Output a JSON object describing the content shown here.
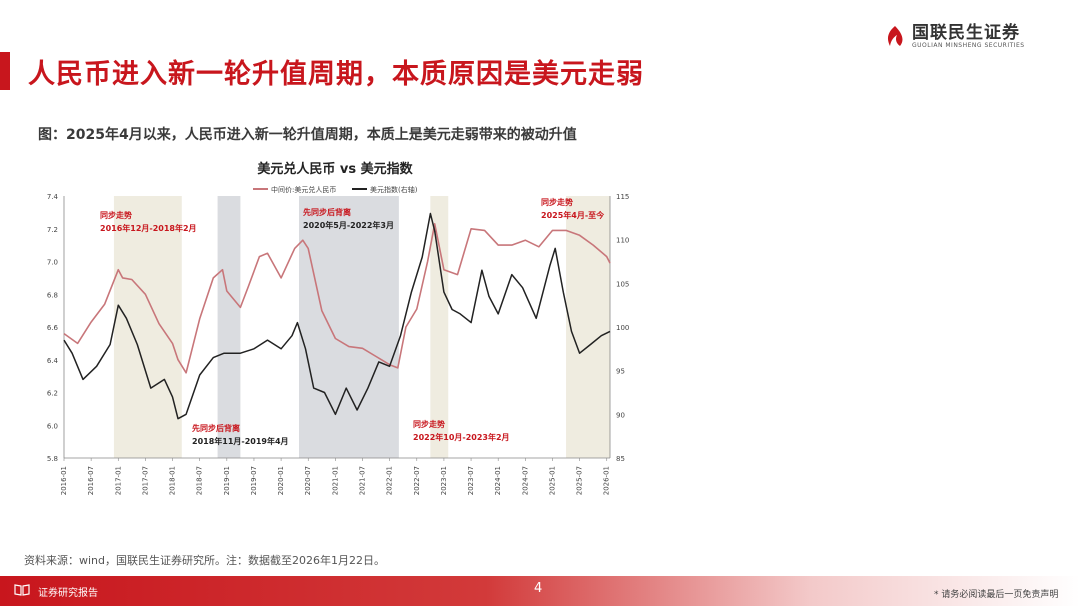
{
  "slide": {
    "title": "人民币进入新一轮升值周期，本质原因是美元走弱",
    "logo_cn": "国联民生证券",
    "logo_en": "GUOLIAN MINSHENG SECURITIES",
    "figure_caption": "图：2025年4月以来，人民币进入新一轮升值周期，本质上是美元走弱带来的被动升值",
    "source": "资料来源：wind，国联民生证券研究所。注：数据截至2026年1月22日。",
    "footer_label": "证券研究报告",
    "page_number": "4",
    "disclaimer": "* 请务必阅读最后一页免责声明",
    "accent_color": "#c8161d"
  },
  "chart_data": {
    "type": "line",
    "title": "美元兑人民币 vs 美元指数",
    "x_tick_labels": [
      "2016-01",
      "2016-07",
      "2017-01",
      "2017-07",
      "2018-01",
      "2018-07",
      "2019-01",
      "2019-07",
      "2020-01",
      "2020-07",
      "2021-01",
      "2021-07",
      "2022-01",
      "2022-07",
      "2023-01",
      "2023-07",
      "2024-01",
      "2024-07",
      "2025-01",
      "2025-07",
      "2026-01"
    ],
    "y_left": {
      "min": 5.8,
      "max": 7.4,
      "ticks": [
        "5.8",
        "6.0",
        "6.2",
        "6.4",
        "6.6",
        "6.8",
        "7.0",
        "7.2",
        "7.4"
      ]
    },
    "y_right": {
      "min": 85,
      "max": 115,
      "ticks": [
        "85",
        "90",
        "95",
        "100",
        "105",
        "110",
        "115"
      ]
    },
    "legend_position": "top",
    "series": [
      {
        "name": "中间价:美元兑人民币",
        "axis": "left",
        "color": "#c8767a",
        "x": [
          2016.0,
          2016.25,
          2016.5,
          2016.75,
          2017.0,
          2017.08,
          2017.25,
          2017.5,
          2017.75,
          2018.0,
          2018.1,
          2018.25,
          2018.5,
          2018.75,
          2018.92,
          2019.0,
          2019.25,
          2019.4,
          2019.6,
          2019.75,
          2020.0,
          2020.25,
          2020.4,
          2020.5,
          2020.75,
          2021.0,
          2021.25,
          2021.5,
          2021.75,
          2022.0,
          2022.15,
          2022.3,
          2022.5,
          2022.7,
          2022.83,
          2023.0,
          2023.25,
          2023.5,
          2023.75,
          2024.0,
          2024.25,
          2024.5,
          2024.75,
          2025.0,
          2025.25,
          2025.5,
          2025.75,
          2026.0,
          2026.06
        ],
        "y": [
          6.56,
          6.5,
          6.63,
          6.74,
          6.95,
          6.9,
          6.89,
          6.8,
          6.62,
          6.5,
          6.4,
          6.32,
          6.65,
          6.9,
          6.95,
          6.82,
          6.72,
          6.85,
          7.03,
          7.05,
          6.9,
          7.08,
          7.13,
          7.08,
          6.7,
          6.53,
          6.48,
          6.47,
          6.42,
          6.37,
          6.35,
          6.6,
          6.71,
          7.0,
          7.23,
          6.95,
          6.92,
          7.2,
          7.19,
          7.1,
          7.1,
          7.13,
          7.09,
          7.19,
          7.19,
          7.16,
          7.1,
          7.03,
          6.99
        ]
      },
      {
        "name": "美元指数(右轴)",
        "axis": "right",
        "color": "#222222",
        "x": [
          2016.0,
          2016.15,
          2016.35,
          2016.6,
          2016.85,
          2017.0,
          2017.15,
          2017.35,
          2017.6,
          2017.85,
          2018.0,
          2018.1,
          2018.25,
          2018.5,
          2018.75,
          2018.95,
          2019.25,
          2019.5,
          2019.75,
          2020.0,
          2020.2,
          2020.3,
          2020.45,
          2020.6,
          2020.8,
          2021.0,
          2021.2,
          2021.4,
          2021.6,
          2021.8,
          2022.0,
          2022.2,
          2022.4,
          2022.6,
          2022.75,
          2022.83,
          2023.0,
          2023.15,
          2023.3,
          2023.5,
          2023.7,
          2023.83,
          2024.0,
          2024.25,
          2024.45,
          2024.7,
          2024.95,
          2025.05,
          2025.2,
          2025.35,
          2025.5,
          2025.7,
          2025.9,
          2026.06
        ],
        "y": [
          98.5,
          97.0,
          94.0,
          95.5,
          98.0,
          102.5,
          101.0,
          98.0,
          93.0,
          94.0,
          92.0,
          89.5,
          90.0,
          94.5,
          96.5,
          97.0,
          97.0,
          97.5,
          98.5,
          97.5,
          99.0,
          100.5,
          97.5,
          93.0,
          92.5,
          90.0,
          93.0,
          90.5,
          93.0,
          96.0,
          95.5,
          99.0,
          104.0,
          108.0,
          113.0,
          111.0,
          104.0,
          102.0,
          101.5,
          100.5,
          106.5,
          103.5,
          101.5,
          106.0,
          104.5,
          101.0,
          107.0,
          109.0,
          104.0,
          99.5,
          97.0,
          98.0,
          99.0,
          99.5
        ]
      }
    ],
    "periods": [
      {
        "start": 2016.92,
        "end": 2018.17,
        "type": "同步走势",
        "label_lines": [
          "同步走势",
          "2016年12月-2018年2月"
        ]
      },
      {
        "start": 2018.83,
        "end": 2019.25,
        "type": "先同步后背离",
        "label_lines": [
          "先同步后背离",
          "2018年11月-2019年4月"
        ]
      },
      {
        "start": 2020.33,
        "end": 2022.17,
        "type": "先同步后背离",
        "label_lines": [
          "先同步后背离",
          "2020年5月-2022年3月"
        ]
      },
      {
        "start": 2022.75,
        "end": 2023.08,
        "type": "同步走势",
        "label_lines": [
          "同步走势",
          "2022年10月-2023年2月"
        ]
      },
      {
        "start": 2025.25,
        "end": 2026.06,
        "type": "同步走势",
        "label_lines": [
          "同步走势",
          "2025年4月-至今"
        ]
      }
    ]
  }
}
